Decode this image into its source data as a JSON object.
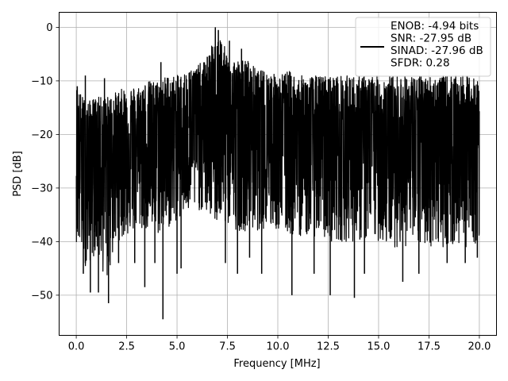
{
  "chart_data": {
    "type": "line",
    "title": "",
    "xlabel": "Frequency [MHz]",
    "ylabel": "PSD [dB]",
    "xlim": [
      -0.85,
      20.85
    ],
    "ylim": [
      -57.5,
      2.8
    ],
    "xticks": [
      0.0,
      2.5,
      5.0,
      7.5,
      10.0,
      12.5,
      15.0,
      17.5,
      20.0
    ],
    "xtick_labels": [
      "0.0",
      "2.5",
      "5.0",
      "7.5",
      "10.0",
      "12.5",
      "15.0",
      "17.5",
      "20.0"
    ],
    "yticks": [
      0,
      -10,
      -20,
      -30,
      -40,
      -50
    ],
    "ytick_labels": [
      "0",
      "−10",
      "−20",
      "−30",
      "−40",
      "−50"
    ],
    "grid": true,
    "legend_position": "top-right",
    "series": [
      {
        "name": "ENOB: -4.94 bits\nSNR: -27.95 dB\nSINAD: -27.96 dB\nSFDR: 0.28",
        "color": "#000000",
        "description": "dense noisy spectrum, envelope approx",
        "x": [
          0.0,
          0.5,
          1.0,
          1.5,
          2.0,
          2.5,
          3.0,
          3.5,
          4.0,
          4.5,
          5.0,
          5.5,
          6.0,
          6.5,
          7.0,
          7.5,
          8.0,
          8.5,
          9.0,
          9.5,
          10.0,
          10.5,
          11.0,
          11.5,
          12.0,
          12.5,
          13.0,
          13.5,
          14.0,
          14.5,
          15.0,
          15.5,
          16.0,
          16.5,
          17.0,
          17.5,
          18.0,
          18.5,
          19.0,
          19.5,
          20.0
        ],
        "upper": [
          -11,
          -14,
          -13,
          -13,
          -12,
          -11,
          -11,
          -10,
          -10,
          -9,
          -9,
          -8,
          -7,
          -6,
          0,
          -5,
          -6,
          -6,
          -8,
          -8,
          -9,
          -8,
          -9,
          -9,
          -9,
          -9,
          -9,
          -9,
          -9,
          -9,
          -9,
          -9,
          -9,
          -9,
          -9,
          -9,
          -9,
          -9,
          -9,
          -9,
          -10
        ],
        "lower": [
          -40,
          -45,
          -42,
          -48,
          -40,
          -39,
          -38,
          -38,
          -39,
          -38,
          -36,
          -35,
          -34,
          -35,
          -37,
          -37,
          -38,
          -38,
          -38,
          -38,
          -38,
          -39,
          -39,
          -39,
          -39,
          -40,
          -40,
          -40,
          -40,
          -40,
          -40,
          -41,
          -41,
          -41,
          -41,
          -41,
          -41,
          -41,
          -41,
          -41,
          -40
        ],
        "mid": [
          -20,
          -22,
          -21,
          -22,
          -21,
          -21,
          -21,
          -20,
          -20,
          -19,
          -19,
          -19,
          -18,
          -18,
          -16,
          -17,
          -18,
          -18,
          -19,
          -19,
          -19,
          -19,
          -20,
          -20,
          -20,
          -20,
          -20,
          -20,
          -20,
          -20,
          -20,
          -20,
          -20,
          -20,
          -20,
          -20,
          -20,
          -20,
          -20,
          -20,
          -20
        ],
        "spikes": [
          {
            "x": 0.35,
            "y": -46
          },
          {
            "x": 0.45,
            "y": -44
          },
          {
            "x": 0.7,
            "y": -49.5
          },
          {
            "x": 1.1,
            "y": -49.5
          },
          {
            "x": 1.6,
            "y": -51.5
          },
          {
            "x": 2.1,
            "y": -44
          },
          {
            "x": 2.9,
            "y": -44
          },
          {
            "x": 3.4,
            "y": -48.5
          },
          {
            "x": 3.9,
            "y": -44
          },
          {
            "x": 4.3,
            "y": -54.5
          },
          {
            "x": 5.0,
            "y": -46
          },
          {
            "x": 5.2,
            "y": -45
          },
          {
            "x": 7.4,
            "y": -44
          },
          {
            "x": 8.0,
            "y": -46
          },
          {
            "x": 8.6,
            "y": -43
          },
          {
            "x": 9.2,
            "y": -46
          },
          {
            "x": 10.7,
            "y": -50
          },
          {
            "x": 11.8,
            "y": -46
          },
          {
            "x": 12.6,
            "y": -50
          },
          {
            "x": 13.8,
            "y": -50.5
          },
          {
            "x": 14.3,
            "y": -46
          },
          {
            "x": 16.2,
            "y": -47.5
          },
          {
            "x": 17.0,
            "y": -46
          },
          {
            "x": 18.4,
            "y": -44
          },
          {
            "x": 19.3,
            "y": -44
          },
          {
            "x": 19.9,
            "y": -43
          }
        ],
        "peaks": [
          {
            "x": 6.9,
            "y": 0.0
          },
          {
            "x": 7.05,
            "y": -0.5
          },
          {
            "x": 7.6,
            "y": -2.5
          },
          {
            "x": 6.5,
            "y": -5.5
          },
          {
            "x": 8.2,
            "y": -4.0
          },
          {
            "x": 5.6,
            "y": -8.5
          },
          {
            "x": 4.2,
            "y": -6.5
          },
          {
            "x": 0.05,
            "y": -11.0
          },
          {
            "x": 1.4,
            "y": -9.5
          },
          {
            "x": 0.45,
            "y": -9.0
          }
        ]
      }
    ]
  }
}
